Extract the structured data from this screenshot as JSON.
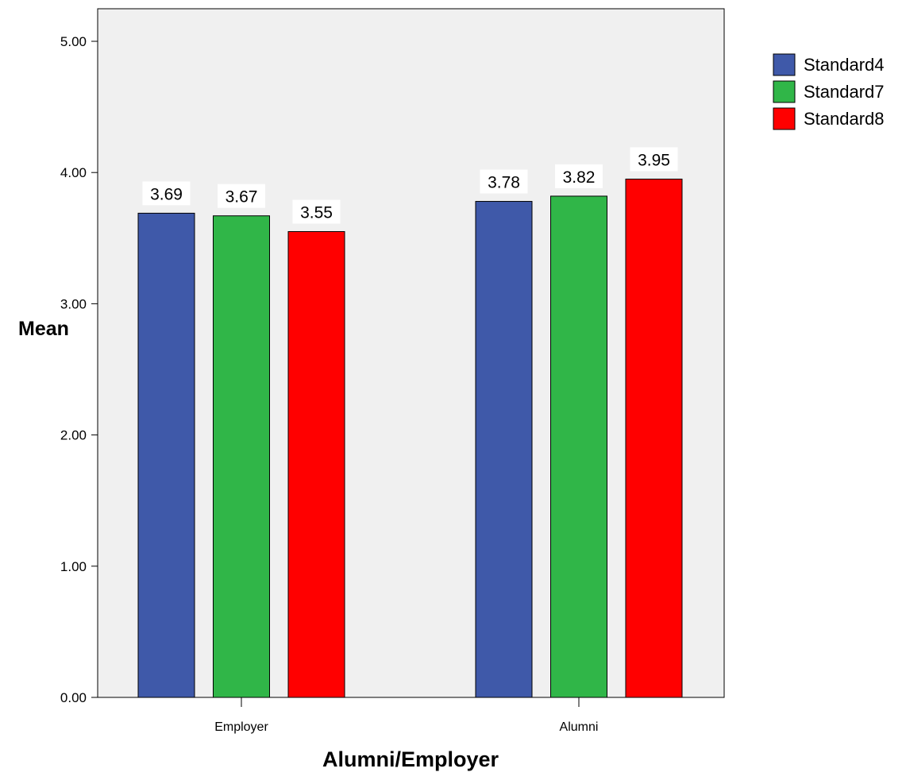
{
  "chart_data": {
    "type": "bar",
    "title": "",
    "xlabel": "Alumni/Employer",
    "ylabel": "Mean",
    "categories": [
      "Employer",
      "Alumni"
    ],
    "series": [
      {
        "name": "Standard4",
        "values": [
          3.69,
          3.78
        ],
        "labels": [
          "3.69",
          "3.78"
        ],
        "color": "#3f59a9"
      },
      {
        "name": "Standard7",
        "values": [
          3.67,
          3.82
        ],
        "labels": [
          "3.67",
          "3.82"
        ],
        "color": "#30b648"
      },
      {
        "name": "Standard8",
        "values": [
          3.55,
          3.95
        ],
        "labels": [
          "3.55",
          "3.95"
        ],
        "color": "#ff0000"
      }
    ],
    "ylim": [
      0,
      5
    ],
    "yticks": [
      "0.00",
      "1.00",
      "2.00",
      "3.00",
      "4.00",
      "5.00"
    ],
    "grid": false,
    "legend": "right",
    "plot_background": "#f0f0f0"
  }
}
